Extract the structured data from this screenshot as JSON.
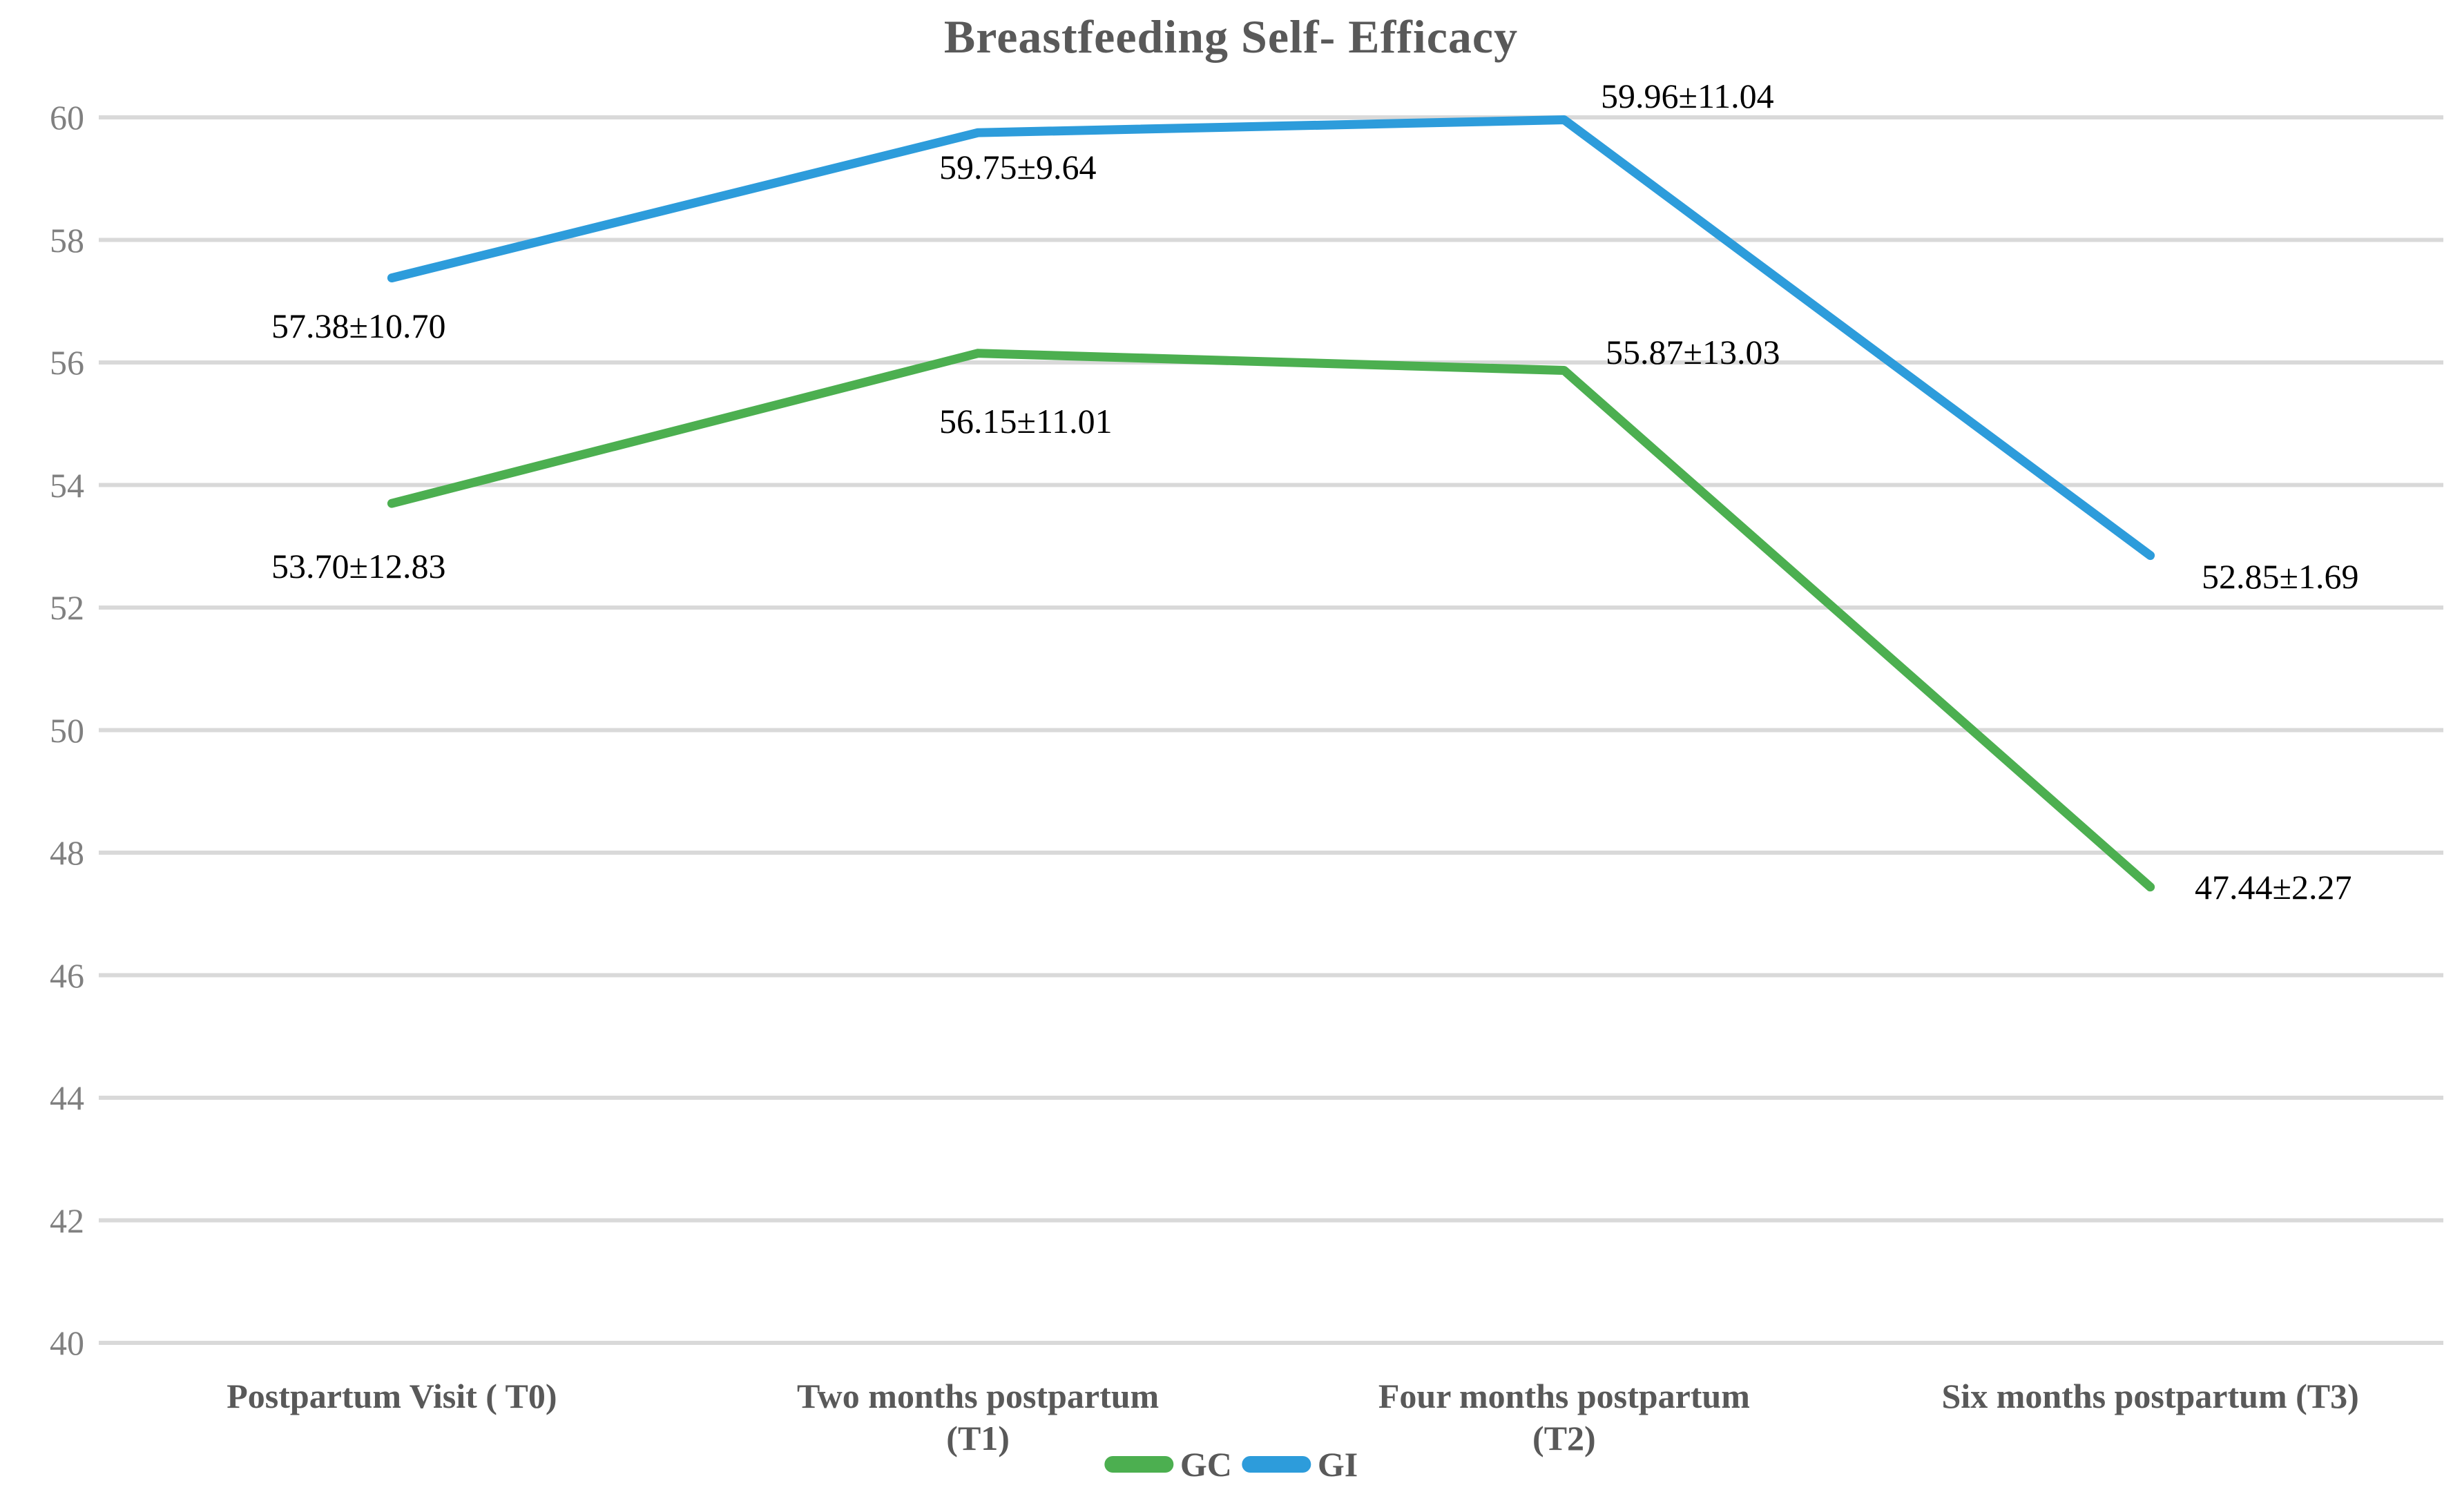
{
  "chart_data": {
    "type": "line",
    "title": "Breastfeeding Self- Efficacy",
    "categories": [
      {
        "label": "Postpartum Visit ( T0)",
        "lines": [
          "Postpartum Visit ( T0)"
        ]
      },
      {
        "label": "Two months postpartum (T1)",
        "lines": [
          "Two months postpartum",
          "(T1)"
        ]
      },
      {
        "label": "Four months postpartum (T2)",
        "lines": [
          "Four months postpartum",
          "(T2)"
        ]
      },
      {
        "label": "Six months postpartum (T3)",
        "lines": [
          "Six months postpartum (T3)"
        ]
      }
    ],
    "series": [
      {
        "name": "GC",
        "color": "#4CAF50",
        "values": [
          53.7,
          56.15,
          55.87,
          47.44
        ],
        "sd": [
          12.83,
          11.01,
          13.03,
          2.27
        ],
        "data_labels": [
          "53.70±12.83",
          "56.15±11.01",
          "55.87±13.03",
          "47.44±2.27"
        ]
      },
      {
        "name": "GI",
        "color": "#2D9CDB",
        "values": [
          57.38,
          59.75,
          59.96,
          52.85
        ],
        "sd": [
          10.7,
          9.64,
          11.04,
          1.69
        ],
        "data_labels": [
          "57.38±10.70",
          "59.75±9.64",
          "59.96±11.04",
          "52.85±1.69"
        ]
      }
    ],
    "ylim": [
      40,
      60
    ],
    "ytick_step": 2,
    "yticks": [
      60,
      58,
      56,
      54,
      52,
      50,
      48,
      46,
      44,
      42,
      40
    ],
    "grid": "horizontal",
    "legend_position": "bottom-center",
    "legend": [
      {
        "label": "GC",
        "color": "#4CAF50"
      },
      {
        "label": "GI",
        "color": "#2D9CDB"
      }
    ],
    "colors": {
      "gridline": "#D9D9D9",
      "axis_text": "#808080",
      "category_text": "#595959",
      "title_text": "#595959",
      "data_label_text": "#000000"
    }
  }
}
